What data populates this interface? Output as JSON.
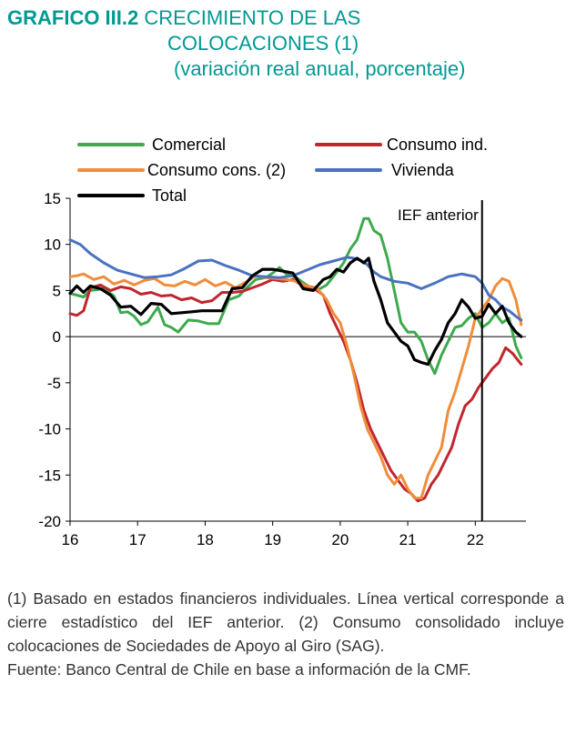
{
  "header": {
    "title_bold": "GRAFICO III.2",
    "title_line1": "CRECIMIENTO DE LAS",
    "title_line2": "COLOCACIONES (1)",
    "title_line3": "(variación real anual, porcentaje)"
  },
  "notes": {
    "note1": "(1) Basado en estados financieros individuales. Línea vertical corresponde a cierre estadístico del IEF anterior. (2) Consumo consolidado incluye colocaciones de Sociedades de Apoyo al Giro (SAG).",
    "source": "Fuente: Banco Central de Chile en base a información de la CMF."
  },
  "colors": {
    "comercial": "#3daa4d",
    "consumo_ind": "#c0262d",
    "consumo_cons": "#f08c3a",
    "vivienda": "#4a72c0",
    "total": "#000000"
  },
  "chart_data": {
    "type": "line",
    "title": "CRECIMIENTO DE LAS COLOCACIONES (1)",
    "subtitle": "(variación real anual, porcentaje)",
    "xlabel": "",
    "ylabel": "",
    "xlim": [
      16,
      22.75
    ],
    "ylim": [
      -20,
      15
    ],
    "yticks": [
      15,
      10,
      5,
      0,
      -5,
      -10,
      -15,
      -20
    ],
    "xticks": [
      16,
      17,
      18,
      19,
      20,
      21,
      22
    ],
    "x_tick_labels": [
      "16",
      "17",
      "18",
      "19",
      "20",
      "21",
      "22"
    ],
    "annotation": {
      "label": "IEF anterior",
      "x": 22.1
    },
    "legend": [
      "Comercial",
      "Consumo ind.",
      "Consumo cons. (2)",
      "Vivienda",
      "Total"
    ],
    "series": [
      {
        "name": "Comercial",
        "color": "#3daa4d",
        "x": [
          16,
          16.1,
          16.2,
          16.3,
          16.5,
          16.65,
          16.75,
          16.85,
          16.95,
          17.05,
          17.15,
          17.3,
          17.4,
          17.5,
          17.6,
          17.75,
          17.9,
          18.05,
          18.2,
          18.35,
          18.5,
          18.6,
          18.75,
          18.9,
          19.0,
          19.1,
          19.2,
          19.35,
          19.5,
          19.65,
          19.8,
          19.95,
          20.05,
          20.15,
          20.25,
          20.35,
          20.42,
          20.5,
          20.6,
          20.7,
          20.8,
          20.9,
          21.0,
          21.1,
          21.2,
          21.3,
          21.4,
          21.5,
          21.6,
          21.7,
          21.8,
          21.9,
          22.0,
          22.1,
          22.2,
          22.3,
          22.4,
          22.5,
          22.6,
          22.68
        ],
        "values": [
          4.7,
          4.5,
          4.3,
          5.0,
          5.2,
          4.4,
          2.6,
          2.7,
          2.2,
          1.3,
          1.6,
          3.2,
          1.3,
          1.0,
          0.5,
          1.8,
          1.7,
          1.4,
          1.4,
          4.0,
          4.4,
          5.2,
          6.2,
          6.4,
          6.9,
          7.5,
          6.8,
          6.4,
          5.6,
          5.0,
          5.6,
          7.0,
          8.0,
          9.5,
          10.5,
          12.8,
          12.8,
          11.5,
          11.0,
          8.5,
          5.0,
          1.5,
          0.5,
          0.5,
          -0.5,
          -2.5,
          -4.0,
          -2.0,
          -0.5,
          1.0,
          1.2,
          2.0,
          2.5,
          1.0,
          1.5,
          2.5,
          1.5,
          2.0,
          -1.0,
          -2.3
        ]
      },
      {
        "name": "Consumo ind.",
        "color": "#c0262d",
        "x": [
          16,
          16.1,
          16.2,
          16.3,
          16.45,
          16.6,
          16.75,
          16.9,
          17.05,
          17.2,
          17.35,
          17.5,
          17.65,
          17.8,
          17.95,
          18.1,
          18.25,
          18.4,
          18.55,
          18.7,
          18.85,
          19.0,
          19.15,
          19.3,
          19.45,
          19.6,
          19.75,
          19.85,
          19.95,
          20.05,
          20.15,
          20.25,
          20.35,
          20.45,
          20.55,
          20.65,
          20.75,
          20.85,
          20.95,
          21.05,
          21.15,
          21.25,
          21.35,
          21.45,
          21.55,
          21.65,
          21.75,
          21.85,
          21.95,
          22.05,
          22.15,
          22.25,
          22.35,
          22.45,
          22.55,
          22.68
        ],
        "values": [
          2.5,
          2.3,
          2.8,
          5.3,
          5.6,
          5.0,
          5.4,
          5.2,
          4.6,
          4.8,
          4.4,
          4.5,
          4.0,
          4.2,
          3.7,
          3.9,
          4.8,
          4.8,
          4.9,
          5.3,
          5.7,
          6.2,
          6.0,
          6.2,
          5.5,
          5.3,
          4.5,
          2.5,
          1.0,
          -0.5,
          -2.5,
          -5.0,
          -8.0,
          -10.0,
          -11.5,
          -13.0,
          -14.5,
          -15.5,
          -16.5,
          -17.0,
          -17.8,
          -17.5,
          -16.0,
          -15.0,
          -13.5,
          -12.0,
          -9.5,
          -7.5,
          -6.8,
          -5.5,
          -4.5,
          -3.5,
          -2.8,
          -1.2,
          -1.8,
          -3.0
        ]
      },
      {
        "name": "Consumo cons. (2)",
        "color": "#f08c3a",
        "x": [
          16,
          16.1,
          16.2,
          16.35,
          16.5,
          16.65,
          16.8,
          16.95,
          17.1,
          17.25,
          17.4,
          17.55,
          17.7,
          17.85,
          18.0,
          18.15,
          18.3,
          18.45,
          18.6,
          18.75,
          18.9,
          19.05,
          19.2,
          19.35,
          19.5,
          19.65,
          19.8,
          19.9,
          20.0,
          20.1,
          20.2,
          20.3,
          20.4,
          20.5,
          20.6,
          20.7,
          20.8,
          20.9,
          21.0,
          21.1,
          21.2,
          21.3,
          21.4,
          21.5,
          21.6,
          21.7,
          21.8,
          21.9,
          22.0,
          22.1,
          22.2,
          22.3,
          22.4,
          22.5,
          22.6,
          22.68
        ],
        "values": [
          6.5,
          6.6,
          6.8,
          6.2,
          6.5,
          5.7,
          6.1,
          5.6,
          6.1,
          6.3,
          5.6,
          5.5,
          6.0,
          5.6,
          6.2,
          5.5,
          5.9,
          5.3,
          5.9,
          6.6,
          6.4,
          6.3,
          6.2,
          6.0,
          5.5,
          5.3,
          4.0,
          2.5,
          1.5,
          -1.0,
          -4.0,
          -7.5,
          -10.0,
          -11.5,
          -13.0,
          -15.0,
          -16.0,
          -15.0,
          -16.5,
          -17.5,
          -17.5,
          -15.0,
          -13.5,
          -12.0,
          -8.0,
          -6.0,
          -3.5,
          -1.0,
          2.0,
          3.0,
          4.0,
          5.5,
          6.3,
          6.0,
          4.0,
          1.3
        ]
      },
      {
        "name": "Vivienda",
        "color": "#4a72c0",
        "x": [
          16,
          16.15,
          16.3,
          16.5,
          16.7,
          16.9,
          17.1,
          17.3,
          17.5,
          17.7,
          17.9,
          18.1,
          18.3,
          18.5,
          18.7,
          18.9,
          19.1,
          19.3,
          19.5,
          19.7,
          19.9,
          20.0,
          20.1,
          20.2,
          20.3,
          20.4,
          20.5,
          20.6,
          20.8,
          21.0,
          21.2,
          21.4,
          21.6,
          21.8,
          22.0,
          22.1,
          22.2,
          22.3,
          22.4,
          22.5,
          22.6,
          22.68
        ],
        "values": [
          10.5,
          10.0,
          9.0,
          8.0,
          7.2,
          6.8,
          6.4,
          6.5,
          6.7,
          7.4,
          8.2,
          8.3,
          7.7,
          7.2,
          6.6,
          6.5,
          6.4,
          6.6,
          7.2,
          7.8,
          8.2,
          8.4,
          8.6,
          8.5,
          8.3,
          7.8,
          7.0,
          6.5,
          6.0,
          5.8,
          5.2,
          5.8,
          6.5,
          6.8,
          6.5,
          5.8,
          4.5,
          4.0,
          3.2,
          2.8,
          2.2,
          1.8
        ]
      },
      {
        "name": "Total",
        "color": "#000000",
        "x": [
          16,
          16.1,
          16.2,
          16.3,
          16.45,
          16.6,
          16.75,
          16.9,
          17.05,
          17.2,
          17.35,
          17.5,
          17.65,
          17.8,
          17.95,
          18.1,
          18.25,
          18.4,
          18.55,
          18.7,
          18.85,
          19.0,
          19.15,
          19.3,
          19.45,
          19.6,
          19.75,
          19.85,
          19.95,
          20.05,
          20.15,
          20.25,
          20.35,
          20.42,
          20.5,
          20.6,
          20.7,
          20.8,
          20.9,
          21.0,
          21.1,
          21.2,
          21.3,
          21.4,
          21.5,
          21.6,
          21.7,
          21.8,
          21.9,
          22.0,
          22.1,
          22.2,
          22.3,
          22.4,
          22.5,
          22.6,
          22.68
        ],
        "values": [
          4.7,
          5.5,
          4.8,
          5.5,
          5.2,
          4.5,
          3.2,
          3.3,
          2.4,
          3.6,
          3.5,
          2.5,
          2.6,
          2.7,
          2.8,
          2.8,
          2.8,
          5.2,
          5.3,
          6.6,
          7.3,
          7.3,
          7.1,
          6.9,
          5.2,
          5.0,
          6.2,
          6.5,
          7.3,
          7.0,
          8.0,
          8.5,
          8.0,
          8.5,
          6.0,
          4.0,
          1.5,
          0.5,
          -0.5,
          -1.0,
          -2.5,
          -2.8,
          -3.0,
          -1.5,
          -0.3,
          1.5,
          2.5,
          4.0,
          3.2,
          2.0,
          2.2,
          3.5,
          2.5,
          3.3,
          1.5,
          0.5,
          0.0
        ]
      }
    ]
  }
}
